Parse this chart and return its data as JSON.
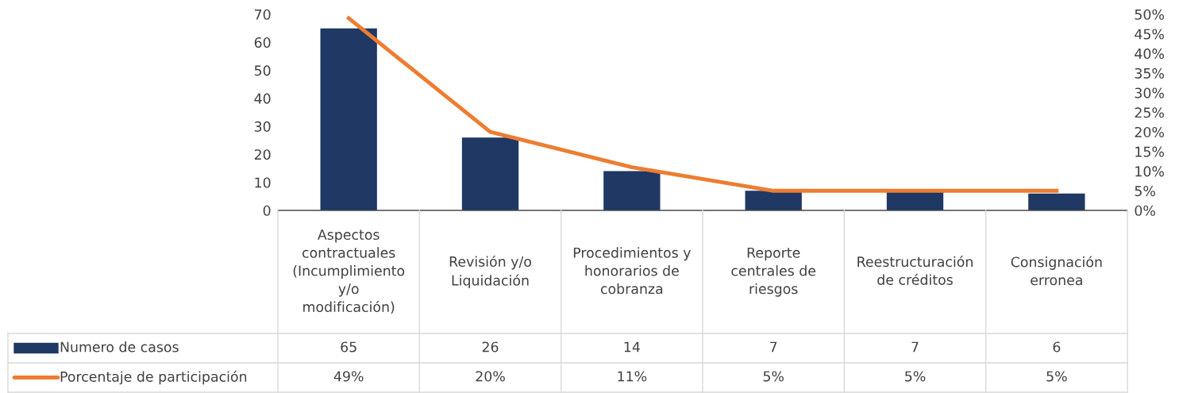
{
  "chart_data": {
    "type": "bar",
    "categories": [
      "Aspectos\ncontractuales\n(Incumplimiento\ny/o\nmodificación)",
      "Revisión y/o\nLiquidación",
      "Procedimientos y\nhonorarios de\ncobranza",
      "Reporte\ncentrales de\nriesgos",
      "Reestructuración\nde créditos",
      "Consignación\nerronea"
    ],
    "series": [
      {
        "name": "Numero de casos",
        "color": "#1f3864",
        "values": [
          65,
          26,
          14,
          7,
          7,
          6
        ],
        "value_labels": [
          "65",
          "26",
          "14",
          "7",
          "7",
          "6"
        ]
      },
      {
        "name": "Porcentaje de participación",
        "type": "line",
        "axis": "y2",
        "color": "#ed7d31",
        "values": [
          49,
          20,
          11,
          5,
          5,
          5
        ],
        "value_labels": [
          "49%",
          "20%",
          "11%",
          "5%",
          "5%",
          "5%"
        ]
      }
    ],
    "ylim": [
      0,
      70
    ],
    "yticks": [
      0,
      10,
      20,
      30,
      40,
      50,
      60,
      70
    ],
    "y2lim": [
      0,
      50
    ],
    "y2ticks": [
      {
        "value": 0,
        "label": "0%"
      },
      {
        "value": 5,
        "label": "5%"
      },
      {
        "value": 10,
        "label": "10%"
      },
      {
        "value": 15,
        "label": "15%"
      },
      {
        "value": 20,
        "label": "20%"
      },
      {
        "value": 25,
        "label": "25%"
      },
      {
        "value": 30,
        "label": "30%"
      },
      {
        "value": 35,
        "label": "35%"
      },
      {
        "value": 40,
        "label": "40%"
      },
      {
        "value": 45,
        "label": "45%"
      },
      {
        "value": 50,
        "label": "50%"
      }
    ],
    "grid": false,
    "legend": "bottom",
    "line_style": "solid"
  }
}
